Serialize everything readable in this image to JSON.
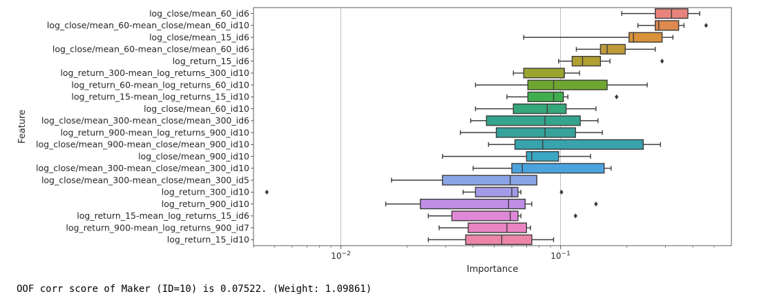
{
  "chart_data": {
    "type": "boxplot",
    "orientation": "horizontal",
    "xlabel": "Importance",
    "ylabel": "Feature",
    "xscale": "log",
    "xlim": [
      0.004,
      0.6
    ],
    "xticks": [
      {
        "value": 0.01,
        "base": "10",
        "exp": "−2"
      },
      {
        "value": 0.1,
        "base": "10",
        "exp": "−1"
      }
    ],
    "grid": "vertical major",
    "categories": [
      "log_close/mean_60_id6",
      "log_close/mean_60-mean_close/mean_60_id10",
      "log_close/mean_15_id6",
      "log_close/mean_60-mean_close/mean_60_id6",
      "log_return_15_id6",
      "log_return_300-mean_log_returns_300_id10",
      "log_return_60-mean_log_returns_60_id10",
      "log_return_15-mean_log_returns_15_id10",
      "log_close/mean_60_id10",
      "log_close/mean_300-mean_close/mean_300_id6",
      "log_return_900-mean_log_returns_900_id10",
      "log_close/mean_900-mean_close/mean_900_id10",
      "log_close/mean_900_id10",
      "log_close/mean_300-mean_close/mean_300_id10",
      "log_close/mean_300-mean_close/mean_300_id5",
      "log_return_300_id10",
      "log_return_900_id10",
      "log_return_15-mean_log_returns_15_id6",
      "log_return_900-mean_log_returns_900_id7",
      "log_return_15_id10"
    ],
    "boxes": [
      {
        "whisker_low": 0.19,
        "q1": 0.27,
        "median": 0.32,
        "q3": 0.38,
        "whisker_high": 0.43,
        "outliers": [],
        "color": "#e8837c"
      },
      {
        "whisker_low": 0.225,
        "q1": 0.27,
        "median": 0.28,
        "q3": 0.345,
        "whisker_high": 0.365,
        "outliers": [
          0.46
        ],
        "color": "#dd8a4e"
      },
      {
        "whisker_low": 0.068,
        "q1": 0.205,
        "median": 0.215,
        "q3": 0.29,
        "whisker_high": 0.325,
        "outliers": [],
        "color": "#d9913a"
      },
      {
        "whisker_low": 0.118,
        "q1": 0.152,
        "median": 0.163,
        "q3": 0.197,
        "whisker_high": 0.27,
        "outliers": [],
        "color": "#bf9b3a"
      },
      {
        "whisker_low": 0.098,
        "q1": 0.113,
        "median": 0.126,
        "q3": 0.152,
        "whisker_high": 0.168,
        "outliers": [
          0.29
        ],
        "color": "#b0a032"
      },
      {
        "whisker_low": 0.061,
        "q1": 0.068,
        "median": 0.104,
        "q3": 0.104,
        "whisker_high": 0.122,
        "outliers": [],
        "color": "#9aa32e"
      },
      {
        "whisker_low": 0.041,
        "q1": 0.071,
        "median": 0.093,
        "q3": 0.163,
        "whisker_high": 0.248,
        "outliers": [],
        "color": "#6fa631"
      },
      {
        "whisker_low": 0.057,
        "q1": 0.071,
        "median": 0.093,
        "q3": 0.103,
        "whisker_high": 0.108,
        "outliers": [
          0.18
        ],
        "color": "#3fae4e"
      },
      {
        "whisker_low": 0.041,
        "q1": 0.061,
        "median": 0.087,
        "q3": 0.106,
        "whisker_high": 0.145,
        "outliers": [],
        "color": "#35a77a"
      },
      {
        "whisker_low": 0.039,
        "q1": 0.046,
        "median": 0.085,
        "q3": 0.123,
        "whisker_high": 0.148,
        "outliers": [],
        "color": "#35a48d"
      },
      {
        "whisker_low": 0.035,
        "q1": 0.051,
        "median": 0.085,
        "q3": 0.117,
        "whisker_high": 0.155,
        "outliers": [],
        "color": "#37a29c"
      },
      {
        "whisker_low": 0.047,
        "q1": 0.062,
        "median": 0.083,
        "q3": 0.238,
        "whisker_high": 0.285,
        "outliers": [],
        "color": "#38a3ad"
      },
      {
        "whisker_low": 0.029,
        "q1": 0.07,
        "median": 0.074,
        "q3": 0.098,
        "whisker_high": 0.137,
        "outliers": [],
        "color": "#3aa7c4"
      },
      {
        "whisker_low": 0.04,
        "q1": 0.06,
        "median": 0.067,
        "q3": 0.158,
        "whisker_high": 0.17,
        "outliers": [],
        "color": "#4ba3dd"
      },
      {
        "whisker_low": 0.017,
        "q1": 0.029,
        "median": 0.059,
        "q3": 0.078,
        "whisker_high": 0.078,
        "outliers": [],
        "color": "#8aa5e6"
      },
      {
        "whisker_low": 0.036,
        "q1": 0.041,
        "median": 0.06,
        "q3": 0.064,
        "whisker_high": 0.066,
        "outliers": [
          0.0046,
          0.101
        ],
        "color": "#a39be8"
      },
      {
        "whisker_low": 0.016,
        "q1": 0.023,
        "median": 0.058,
        "q3": 0.069,
        "whisker_high": 0.074,
        "outliers": [
          0.145
        ],
        "color": "#c18ee6"
      },
      {
        "whisker_low": 0.025,
        "q1": 0.032,
        "median": 0.059,
        "q3": 0.064,
        "whisker_high": 0.066,
        "outliers": [
          0.117
        ],
        "color": "#df88d8"
      },
      {
        "whisker_low": 0.028,
        "q1": 0.038,
        "median": 0.057,
        "q3": 0.07,
        "whisker_high": 0.073,
        "outliers": [],
        "color": "#ea85c2"
      },
      {
        "whisker_low": 0.025,
        "q1": 0.037,
        "median": 0.054,
        "q3": 0.074,
        "whisker_high": 0.093,
        "outliers": [],
        "color": "#ec85a8"
      }
    ]
  },
  "footer_text": "OOF corr score of Maker (ID=10) is 0.07522. (Weight: 1.09861)"
}
